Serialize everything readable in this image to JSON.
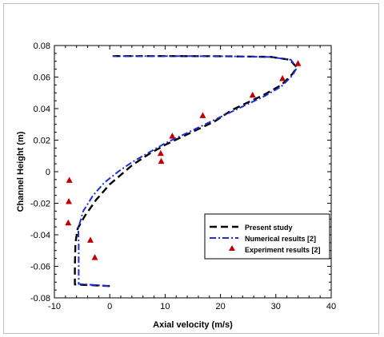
{
  "chart_data": {
    "type": "line",
    "xlabel": "Axial velocity (m/s)",
    "ylabel": "Channel Height (m)",
    "xlim": [
      -10,
      40
    ],
    "ylim": [
      -0.08,
      0.08
    ],
    "x_ticks": [
      -10,
      0,
      10,
      20,
      30,
      40
    ],
    "y_ticks": [
      -0.08,
      -0.06,
      -0.04,
      -0.02,
      0,
      0.02,
      0.04,
      0.06,
      0.08
    ],
    "x_tick_labels": [
      "-10",
      "0",
      "10",
      "20",
      "30",
      "40"
    ],
    "y_tick_labels": [
      "-0.08",
      "-0.06",
      "-0.04",
      "-0.02",
      "0",
      "0.02",
      "0.04",
      "0.06",
      "0.08"
    ],
    "grid": false,
    "legend_position": "bottom-right",
    "series": [
      {
        "name": "Present study",
        "style": "dashed",
        "color": "#000000",
        "points": [
          [
            0,
            -0.0725
          ],
          [
            -3,
            -0.072
          ],
          [
            -6.3,
            -0.0715
          ],
          [
            -6.3,
            -0.06
          ],
          [
            -6.2,
            -0.045
          ],
          [
            -5.8,
            -0.036
          ],
          [
            -4.5,
            -0.028
          ],
          [
            -2.5,
            -0.018
          ],
          [
            0,
            -0.008
          ],
          [
            2,
            -0.002
          ],
          [
            4,
            0.004
          ],
          [
            7,
            0.011
          ],
          [
            10,
            0.017
          ],
          [
            13,
            0.022
          ],
          [
            16,
            0.027
          ],
          [
            19,
            0.032
          ],
          [
            22,
            0.039
          ],
          [
            25,
            0.044
          ],
          [
            28,
            0.049
          ],
          [
            31,
            0.055
          ],
          [
            33,
            0.062
          ],
          [
            33.8,
            0.066
          ],
          [
            32.5,
            0.071
          ],
          [
            29,
            0.0728
          ],
          [
            20,
            0.0732
          ],
          [
            10,
            0.0733
          ],
          [
            0.5,
            0.0733
          ]
        ]
      },
      {
        "name": "Numerical results [2]",
        "style": "dashdot",
        "color": "#1f2fd6",
        "points": [
          [
            -0.2,
            -0.0725
          ],
          [
            -3,
            -0.0718
          ],
          [
            -5.6,
            -0.0712
          ],
          [
            -5.6,
            -0.06
          ],
          [
            -5.6,
            -0.045
          ],
          [
            -5.7,
            -0.036
          ],
          [
            -4.8,
            -0.025
          ],
          [
            -3,
            -0.015
          ],
          [
            -1,
            -0.007
          ],
          [
            1.5,
            0.0
          ],
          [
            4,
            0.006
          ],
          [
            7,
            0.012
          ],
          [
            10,
            0.018
          ],
          [
            13,
            0.023
          ],
          [
            16,
            0.028
          ],
          [
            19,
            0.033
          ],
          [
            22,
            0.038
          ],
          [
            25,
            0.043
          ],
          [
            28,
            0.048
          ],
          [
            31,
            0.054
          ],
          [
            33,
            0.061
          ],
          [
            33.8,
            0.066
          ],
          [
            32.7,
            0.071
          ],
          [
            29,
            0.0727
          ],
          [
            20,
            0.0732
          ],
          [
            10,
            0.0733
          ],
          [
            0.5,
            0.0733
          ]
        ]
      },
      {
        "name": "Experiment results [2]",
        "style": "markers",
        "marker": "triangle",
        "color": "#c00000",
        "points": [
          [
            -7.3,
            -0.0055
          ],
          [
            -7.4,
            -0.019
          ],
          [
            -7.5,
            -0.0325
          ],
          [
            -3.5,
            -0.0435
          ],
          [
            -2.7,
            -0.0545
          ],
          [
            9.3,
            0.0065
          ],
          [
            9.2,
            0.0115
          ],
          [
            11.3,
            0.0225
          ],
          [
            16.8,
            0.0355
          ],
          [
            25.8,
            0.0485
          ],
          [
            31.2,
            0.059
          ],
          [
            34,
            0.0685
          ]
        ]
      }
    ]
  }
}
